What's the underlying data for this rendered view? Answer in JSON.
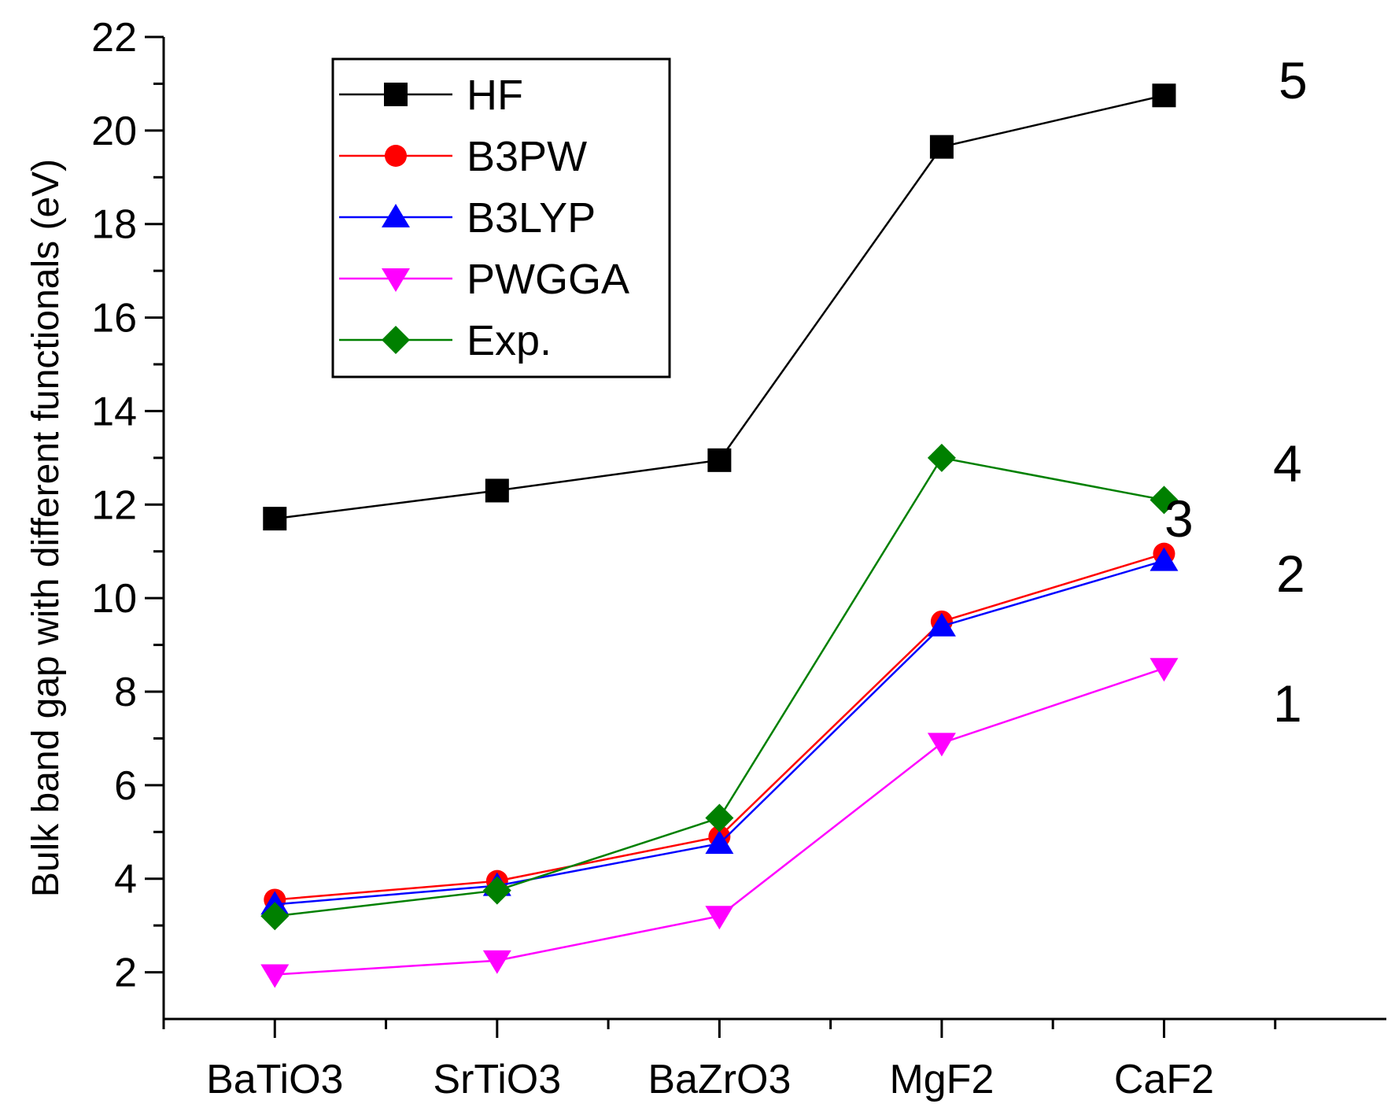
{
  "chart_data": {
    "type": "line",
    "title": "",
    "xlabel": "",
    "ylabel": "Bulk band gap with different functionals (eV)",
    "categories": [
      "BaTiO3",
      "SrTiO3",
      "BaZrO3",
      "MgF2",
      "CaF2"
    ],
    "ylim": [
      1,
      22
    ],
    "yticks": [
      2,
      4,
      6,
      8,
      10,
      12,
      14,
      16,
      18,
      20,
      22
    ],
    "grid": false,
    "legend_position": "top-left",
    "series": [
      {
        "name": "HF",
        "color": "#000000",
        "marker": "square",
        "values": [
          11.7,
          12.3,
          12.95,
          19.65,
          20.75
        ]
      },
      {
        "name": "B3PW",
        "color": "#ff0000",
        "marker": "circle",
        "values": [
          3.55,
          3.95,
          4.9,
          9.5,
          10.95
        ]
      },
      {
        "name": "B3LYP",
        "color": "#0000ff",
        "marker": "triangle-up",
        "values": [
          3.45,
          3.85,
          4.75,
          9.4,
          10.8
        ]
      },
      {
        "name": "PWGGA",
        "color": "#ff00ff",
        "marker": "triangle-down",
        "values": [
          1.95,
          2.25,
          3.2,
          6.9,
          8.5
        ]
      },
      {
        "name": "Exp.",
        "color": "#008000",
        "marker": "diamond",
        "values": [
          3.2,
          3.75,
          5.3,
          13.0,
          12.1
        ]
      }
    ],
    "annotations": [
      "5",
      "4",
      "3",
      "2",
      "1"
    ]
  }
}
